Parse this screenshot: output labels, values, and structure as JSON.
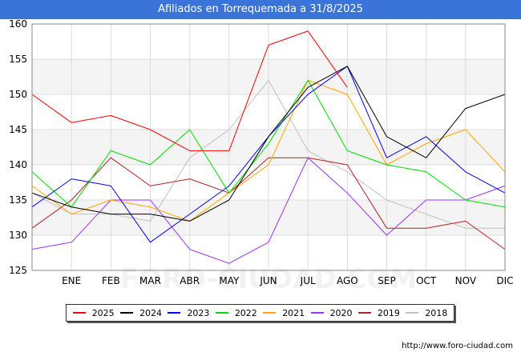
{
  "chart_data": {
    "type": "line",
    "title": "Afiliados en Torrequemada a 31/8/2025",
    "x": [
      "",
      "ENE",
      "FEB",
      "MAR",
      "ABR",
      "MAY",
      "JUN",
      "JUL",
      "AGO",
      "SEP",
      "OCT",
      "NOV",
      "DIC"
    ],
    "ylim": [
      125,
      160
    ],
    "yticks": [
      125,
      130,
      135,
      140,
      145,
      150,
      155,
      160
    ],
    "grid": true,
    "legend_position": "bottom",
    "series": [
      {
        "name": "2025",
        "color": "#ff0000",
        "values": [
          150,
          146,
          147,
          145,
          142,
          142,
          157,
          159,
          151,
          null,
          null,
          null,
          null
        ]
      },
      {
        "name": "2024",
        "color": "#000000",
        "values": [
          136,
          134,
          133,
          133,
          132,
          135,
          144,
          151,
          154,
          144,
          141,
          148,
          150
        ]
      },
      {
        "name": "2023",
        "color": "#0000ff",
        "values": [
          134,
          138,
          137,
          129,
          133,
          137,
          144,
          150,
          154,
          141,
          144,
          139,
          136
        ]
      },
      {
        "name": "2022",
        "color": "#00dd00",
        "values": [
          139,
          134,
          142,
          140,
          145,
          136,
          143,
          152,
          142,
          140,
          139,
          135,
          134
        ]
      },
      {
        "name": "2021",
        "color": "#ffa500",
        "values": [
          137,
          133,
          135,
          134,
          132,
          136,
          140,
          152,
          150,
          140,
          143,
          145,
          139
        ]
      },
      {
        "name": "2020",
        "color": "#9b30ff",
        "values": [
          128,
          129,
          135,
          135,
          128,
          126,
          129,
          141,
          136,
          130,
          135,
          135,
          137
        ]
      },
      {
        "name": "2019",
        "color": "#b22222",
        "values": [
          131,
          135,
          141,
          137,
          138,
          136,
          141,
          141,
          140,
          131,
          131,
          132,
          128
        ]
      },
      {
        "name": "2018",
        "color": "#c0c0c0",
        "values": [
          136,
          133,
          133,
          132,
          141,
          145,
          152,
          142,
          139,
          135,
          133,
          131,
          131
        ]
      }
    ]
  },
  "footer": {
    "source": "http://www.foro-ciudad.com"
  },
  "watermark": "FORO-CIUDAD.COM"
}
